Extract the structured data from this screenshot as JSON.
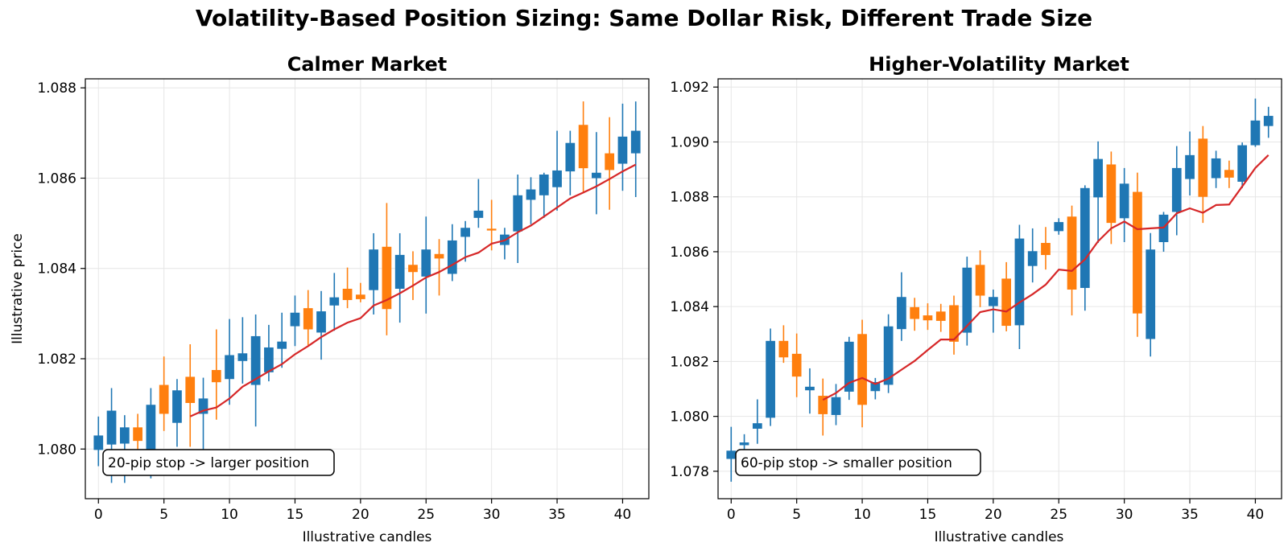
{
  "figure_title": "Volatility-Based Position Sizing: Same Dollar Risk, Different Trade Size",
  "colors": {
    "up": "#1f77b4",
    "down": "#ff7f0e",
    "ma": "#d62728",
    "grid": "#e6e6e6"
  },
  "chart_data": [
    {
      "type": "candlestick",
      "title": "Calmer Market",
      "xlabel": "Illustrative candles",
      "ylabel": "Illustrative price",
      "xlim": [
        -1,
        42
      ],
      "ylim": [
        1.0789,
        1.0882
      ],
      "xticks": [
        0,
        5,
        10,
        15,
        20,
        25,
        30,
        35,
        40
      ],
      "xtick_labels": [
        "0",
        "5",
        "10",
        "15",
        "20",
        "25",
        "30",
        "35",
        "40"
      ],
      "yticks": [
        1.08,
        1.082,
        1.084,
        1.086,
        1.088
      ],
      "ytick_labels": [
        "1.080",
        "1.082",
        "1.084",
        "1.086",
        "1.088"
      ],
      "grid": true,
      "annotation": "20-pip stop -> larger position",
      "candles": [
        {
          "x": 0,
          "open": 1.07998,
          "high": 1.08072,
          "low": 1.07962,
          "close": 1.0803
        },
        {
          "x": 1,
          "open": 1.0801,
          "high": 1.08135,
          "low": 1.07925,
          "close": 1.08085
        },
        {
          "x": 2,
          "open": 1.08012,
          "high": 1.08075,
          "low": 1.07925,
          "close": 1.08048
        },
        {
          "x": 3,
          "open": 1.08048,
          "high": 1.08078,
          "low": 1.07985,
          "close": 1.08018
        },
        {
          "x": 4,
          "open": 1.07998,
          "high": 1.08135,
          "low": 1.07935,
          "close": 1.08098
        },
        {
          "x": 5,
          "open": 1.08142,
          "high": 1.08205,
          "low": 1.0804,
          "close": 1.08078
        },
        {
          "x": 6,
          "open": 1.08058,
          "high": 1.08155,
          "low": 1.08005,
          "close": 1.0813
        },
        {
          "x": 7,
          "open": 1.0816,
          "high": 1.08232,
          "low": 1.08005,
          "close": 1.08102
        },
        {
          "x": 8,
          "open": 1.08078,
          "high": 1.08158,
          "low": 1.0799,
          "close": 1.08112
        },
        {
          "x": 9,
          "open": 1.08175,
          "high": 1.08265,
          "low": 1.08065,
          "close": 1.08148
        },
        {
          "x": 10,
          "open": 1.08155,
          "high": 1.08288,
          "low": 1.08098,
          "close": 1.08208
        },
        {
          "x": 11,
          "open": 1.08195,
          "high": 1.08292,
          "low": 1.08145,
          "close": 1.08212
        },
        {
          "x": 12,
          "open": 1.08142,
          "high": 1.08298,
          "low": 1.0805,
          "close": 1.0825
        },
        {
          "x": 13,
          "open": 1.0817,
          "high": 1.08275,
          "low": 1.0815,
          "close": 1.08225
        },
        {
          "x": 14,
          "open": 1.08222,
          "high": 1.08302,
          "low": 1.0818,
          "close": 1.08238
        },
        {
          "x": 15,
          "open": 1.08272,
          "high": 1.0834,
          "low": 1.08228,
          "close": 1.08302
        },
        {
          "x": 16,
          "open": 1.08312,
          "high": 1.08352,
          "low": 1.0823,
          "close": 1.08265
        },
        {
          "x": 17,
          "open": 1.08258,
          "high": 1.0835,
          "low": 1.08198,
          "close": 1.08305
        },
        {
          "x": 18,
          "open": 1.08318,
          "high": 1.0839,
          "low": 1.08262,
          "close": 1.08336
        },
        {
          "x": 19,
          "open": 1.08355,
          "high": 1.08402,
          "low": 1.08312,
          "close": 1.0833
        },
        {
          "x": 20,
          "open": 1.08342,
          "high": 1.08368,
          "low": 1.08325,
          "close": 1.08332
        },
        {
          "x": 21,
          "open": 1.08352,
          "high": 1.08478,
          "low": 1.08298,
          "close": 1.08442
        },
        {
          "x": 22,
          "open": 1.08448,
          "high": 1.08545,
          "low": 1.08252,
          "close": 1.0831
        },
        {
          "x": 23,
          "open": 1.08355,
          "high": 1.08478,
          "low": 1.0828,
          "close": 1.0843
        },
        {
          "x": 24,
          "open": 1.08408,
          "high": 1.08438,
          "low": 1.0833,
          "close": 1.08392
        },
        {
          "x": 25,
          "open": 1.08382,
          "high": 1.08515,
          "low": 1.083,
          "close": 1.08442
        },
        {
          "x": 26,
          "open": 1.08432,
          "high": 1.08465,
          "low": 1.0834,
          "close": 1.08422
        },
        {
          "x": 27,
          "open": 1.08388,
          "high": 1.08498,
          "low": 1.08372,
          "close": 1.08462
        },
        {
          "x": 28,
          "open": 1.0847,
          "high": 1.08505,
          "low": 1.08415,
          "close": 1.0849
        },
        {
          "x": 29,
          "open": 1.08512,
          "high": 1.08598,
          "low": 1.0849,
          "close": 1.08528
        },
        {
          "x": 30,
          "open": 1.08488,
          "high": 1.08552,
          "low": 1.0844,
          "close": 1.08486
        },
        {
          "x": 31,
          "open": 1.08452,
          "high": 1.0849,
          "low": 1.0842,
          "close": 1.08475
        },
        {
          "x": 32,
          "open": 1.08482,
          "high": 1.08608,
          "low": 1.08412,
          "close": 1.08562
        },
        {
          "x": 33,
          "open": 1.08552,
          "high": 1.08602,
          "low": 1.08498,
          "close": 1.08575
        },
        {
          "x": 34,
          "open": 1.08562,
          "high": 1.08612,
          "low": 1.08512,
          "close": 1.08608
        },
        {
          "x": 35,
          "open": 1.0858,
          "high": 1.08705,
          "low": 1.08528,
          "close": 1.08617
        },
        {
          "x": 36,
          "open": 1.08615,
          "high": 1.08705,
          "low": 1.08562,
          "close": 1.08678
        },
        {
          "x": 37,
          "open": 1.08718,
          "high": 1.0877,
          "low": 1.08568,
          "close": 1.08622
        },
        {
          "x": 38,
          "open": 1.086,
          "high": 1.08702,
          "low": 1.0852,
          "close": 1.08612
        },
        {
          "x": 39,
          "open": 1.08655,
          "high": 1.08735,
          "low": 1.0853,
          "close": 1.08618
        },
        {
          "x": 40,
          "open": 1.08632,
          "high": 1.08765,
          "low": 1.08572,
          "close": 1.08692
        },
        {
          "x": 41,
          "open": 1.08655,
          "high": 1.0877,
          "low": 1.08558,
          "close": 1.08705
        }
      ],
      "ma": [
        {
          "x": 7,
          "y": 1.08072
        },
        {
          "x": 8,
          "y": 1.08085
        },
        {
          "x": 9,
          "y": 1.08092
        },
        {
          "x": 10,
          "y": 1.08112
        },
        {
          "x": 11,
          "y": 1.08138
        },
        {
          "x": 12,
          "y": 1.08155
        },
        {
          "x": 13,
          "y": 1.08172
        },
        {
          "x": 14,
          "y": 1.08188
        },
        {
          "x": 15,
          "y": 1.0821
        },
        {
          "x": 16,
          "y": 1.08228
        },
        {
          "x": 17,
          "y": 1.08248
        },
        {
          "x": 18,
          "y": 1.08265
        },
        {
          "x": 19,
          "y": 1.0828
        },
        {
          "x": 20,
          "y": 1.0829
        },
        {
          "x": 21,
          "y": 1.08318
        },
        {
          "x": 22,
          "y": 1.0833
        },
        {
          "x": 23,
          "y": 1.08345
        },
        {
          "x": 24,
          "y": 1.08362
        },
        {
          "x": 25,
          "y": 1.0838
        },
        {
          "x": 26,
          "y": 1.08392
        },
        {
          "x": 27,
          "y": 1.08408
        },
        {
          "x": 28,
          "y": 1.08425
        },
        {
          "x": 29,
          "y": 1.08435
        },
        {
          "x": 30,
          "y": 1.08455
        },
        {
          "x": 31,
          "y": 1.08462
        },
        {
          "x": 32,
          "y": 1.0848
        },
        {
          "x": 33,
          "y": 1.08495
        },
        {
          "x": 34,
          "y": 1.08515
        },
        {
          "x": 35,
          "y": 1.08535
        },
        {
          "x": 36,
          "y": 1.08555
        },
        {
          "x": 37,
          "y": 1.08568
        },
        {
          "x": 38,
          "y": 1.08582
        },
        {
          "x": 39,
          "y": 1.08598
        },
        {
          "x": 40,
          "y": 1.08615
        },
        {
          "x": 41,
          "y": 1.0863
        }
      ]
    },
    {
      "type": "candlestick",
      "title": "Higher-Volatility Market",
      "xlabel": "Illustrative candles",
      "ylabel": "",
      "xlim": [
        -1,
        42
      ],
      "ylim": [
        1.077,
        1.0923
      ],
      "xticks": [
        0,
        5,
        10,
        15,
        20,
        25,
        30,
        35,
        40
      ],
      "xtick_labels": [
        "0",
        "5",
        "10",
        "15",
        "20",
        "25",
        "30",
        "35",
        "40"
      ],
      "yticks": [
        1.078,
        1.08,
        1.082,
        1.084,
        1.086,
        1.088,
        1.09,
        1.092
      ],
      "ytick_labels": [
        "1.078",
        "1.080",
        "1.082",
        "1.084",
        "1.086",
        "1.088",
        "1.090",
        "1.092"
      ],
      "grid": true,
      "annotation": "60-pip stop -> smaller position",
      "candles": [
        {
          "x": 0,
          "open": 1.07845,
          "high": 1.07962,
          "low": 1.07762,
          "close": 1.07875
        },
        {
          "x": 1,
          "open": 1.07895,
          "high": 1.07935,
          "low": 1.07842,
          "close": 1.07905
        },
        {
          "x": 2,
          "open": 1.07955,
          "high": 1.08062,
          "low": 1.079,
          "close": 1.07975
        },
        {
          "x": 3,
          "open": 1.07995,
          "high": 1.0832,
          "low": 1.07965,
          "close": 1.08275
        },
        {
          "x": 4,
          "open": 1.08275,
          "high": 1.08332,
          "low": 1.08195,
          "close": 1.08215
        },
        {
          "x": 5,
          "open": 1.08228,
          "high": 1.08302,
          "low": 1.0807,
          "close": 1.08145
        },
        {
          "x": 6,
          "open": 1.08095,
          "high": 1.08175,
          "low": 1.0801,
          "close": 1.08108
        },
        {
          "x": 7,
          "open": 1.08075,
          "high": 1.08138,
          "low": 1.0793,
          "close": 1.08008
        },
        {
          "x": 8,
          "open": 1.08005,
          "high": 1.08118,
          "low": 1.07968,
          "close": 1.0807
        },
        {
          "x": 9,
          "open": 1.0809,
          "high": 1.0829,
          "low": 1.0806,
          "close": 1.08272
        },
        {
          "x": 10,
          "open": 1.083,
          "high": 1.08352,
          "low": 1.0796,
          "close": 1.08042
        },
        {
          "x": 11,
          "open": 1.08092,
          "high": 1.0814,
          "low": 1.08062,
          "close": 1.08125
        },
        {
          "x": 12,
          "open": 1.08115,
          "high": 1.08372,
          "low": 1.08085,
          "close": 1.08328
        },
        {
          "x": 13,
          "open": 1.08318,
          "high": 1.08525,
          "low": 1.08275,
          "close": 1.08435
        },
        {
          "x": 14,
          "open": 1.08398,
          "high": 1.08432,
          "low": 1.08312,
          "close": 1.08355
        },
        {
          "x": 15,
          "open": 1.08368,
          "high": 1.08412,
          "low": 1.08315,
          "close": 1.0835
        },
        {
          "x": 16,
          "open": 1.08382,
          "high": 1.0841,
          "low": 1.08308,
          "close": 1.08348
        },
        {
          "x": 17,
          "open": 1.08405,
          "high": 1.0844,
          "low": 1.08225,
          "close": 1.08272
        },
        {
          "x": 18,
          "open": 1.08305,
          "high": 1.08582,
          "low": 1.08258,
          "close": 1.08542
        },
        {
          "x": 19,
          "open": 1.08552,
          "high": 1.08605,
          "low": 1.08398,
          "close": 1.0844
        },
        {
          "x": 20,
          "open": 1.08402,
          "high": 1.08462,
          "low": 1.08305,
          "close": 1.08435
        },
        {
          "x": 21,
          "open": 1.08502,
          "high": 1.08562,
          "low": 1.0831,
          "close": 1.0833
        },
        {
          "x": 22,
          "open": 1.08332,
          "high": 1.08698,
          "low": 1.08245,
          "close": 1.08648
        },
        {
          "x": 23,
          "open": 1.08548,
          "high": 1.08685,
          "low": 1.08488,
          "close": 1.08602
        },
        {
          "x": 24,
          "open": 1.08632,
          "high": 1.0869,
          "low": 1.08535,
          "close": 1.08588
        },
        {
          "x": 25,
          "open": 1.08675,
          "high": 1.08722,
          "low": 1.08662,
          "close": 1.08708
        },
        {
          "x": 26,
          "open": 1.08728,
          "high": 1.08768,
          "low": 1.08368,
          "close": 1.08462
        },
        {
          "x": 27,
          "open": 1.08468,
          "high": 1.08842,
          "low": 1.08385,
          "close": 1.08832
        },
        {
          "x": 28,
          "open": 1.08798,
          "high": 1.09002,
          "low": 1.08632,
          "close": 1.08938
        },
        {
          "x": 29,
          "open": 1.08918,
          "high": 1.08965,
          "low": 1.08628,
          "close": 1.08705
        },
        {
          "x": 30,
          "open": 1.08722,
          "high": 1.08905,
          "low": 1.08635,
          "close": 1.08848
        },
        {
          "x": 31,
          "open": 1.08818,
          "high": 1.08888,
          "low": 1.0829,
          "close": 1.08375
        },
        {
          "x": 32,
          "open": 1.08282,
          "high": 1.08668,
          "low": 1.08218,
          "close": 1.08608
        },
        {
          "x": 33,
          "open": 1.08635,
          "high": 1.08745,
          "low": 1.086,
          "close": 1.08735
        },
        {
          "x": 34,
          "open": 1.08745,
          "high": 1.08985,
          "low": 1.0866,
          "close": 1.08905
        },
        {
          "x": 35,
          "open": 1.08865,
          "high": 1.09038,
          "low": 1.08805,
          "close": 1.08952
        },
        {
          "x": 36,
          "open": 1.09012,
          "high": 1.09058,
          "low": 1.08705,
          "close": 1.088
        },
        {
          "x": 37,
          "open": 1.08868,
          "high": 1.08968,
          "low": 1.08832,
          "close": 1.0894
        },
        {
          "x": 38,
          "open": 1.08898,
          "high": 1.08932,
          "low": 1.08832,
          "close": 1.0887
        },
        {
          "x": 39,
          "open": 1.08855,
          "high": 1.08998,
          "low": 1.08832,
          "close": 1.08988
        },
        {
          "x": 40,
          "open": 1.08988,
          "high": 1.09158,
          "low": 1.08982,
          "close": 1.09078
        },
        {
          "x": 41,
          "open": 1.09058,
          "high": 1.09128,
          "low": 1.09015,
          "close": 1.09095
        }
      ],
      "ma": [
        {
          "x": 7,
          "y": 1.0806
        },
        {
          "x": 8,
          "y": 1.08085
        },
        {
          "x": 9,
          "y": 1.08122
        },
        {
          "x": 10,
          "y": 1.0814
        },
        {
          "x": 11,
          "y": 1.08118
        },
        {
          "x": 12,
          "y": 1.08138
        },
        {
          "x": 13,
          "y": 1.0817
        },
        {
          "x": 14,
          "y": 1.08202
        },
        {
          "x": 15,
          "y": 1.08242
        },
        {
          "x": 16,
          "y": 1.0828
        },
        {
          "x": 17,
          "y": 1.0828
        },
        {
          "x": 18,
          "y": 1.0833
        },
        {
          "x": 19,
          "y": 1.0838
        },
        {
          "x": 20,
          "y": 1.0839
        },
        {
          "x": 21,
          "y": 1.08382
        },
        {
          "x": 22,
          "y": 1.08415
        },
        {
          "x": 23,
          "y": 1.08445
        },
        {
          "x": 24,
          "y": 1.0848
        },
        {
          "x": 25,
          "y": 1.08535
        },
        {
          "x": 26,
          "y": 1.0853
        },
        {
          "x": 27,
          "y": 1.08572
        },
        {
          "x": 28,
          "y": 1.08638
        },
        {
          "x": 29,
          "y": 1.08685
        },
        {
          "x": 30,
          "y": 1.0871
        },
        {
          "x": 31,
          "y": 1.08682
        },
        {
          "x": 32,
          "y": 1.08685
        },
        {
          "x": 33,
          "y": 1.08688
        },
        {
          "x": 34,
          "y": 1.0874
        },
        {
          "x": 35,
          "y": 1.08758
        },
        {
          "x": 36,
          "y": 1.08742
        },
        {
          "x": 37,
          "y": 1.0877
        },
        {
          "x": 38,
          "y": 1.08772
        },
        {
          "x": 39,
          "y": 1.08838
        },
        {
          "x": 40,
          "y": 1.08905
        },
        {
          "x": 41,
          "y": 1.08952
        }
      ]
    }
  ]
}
